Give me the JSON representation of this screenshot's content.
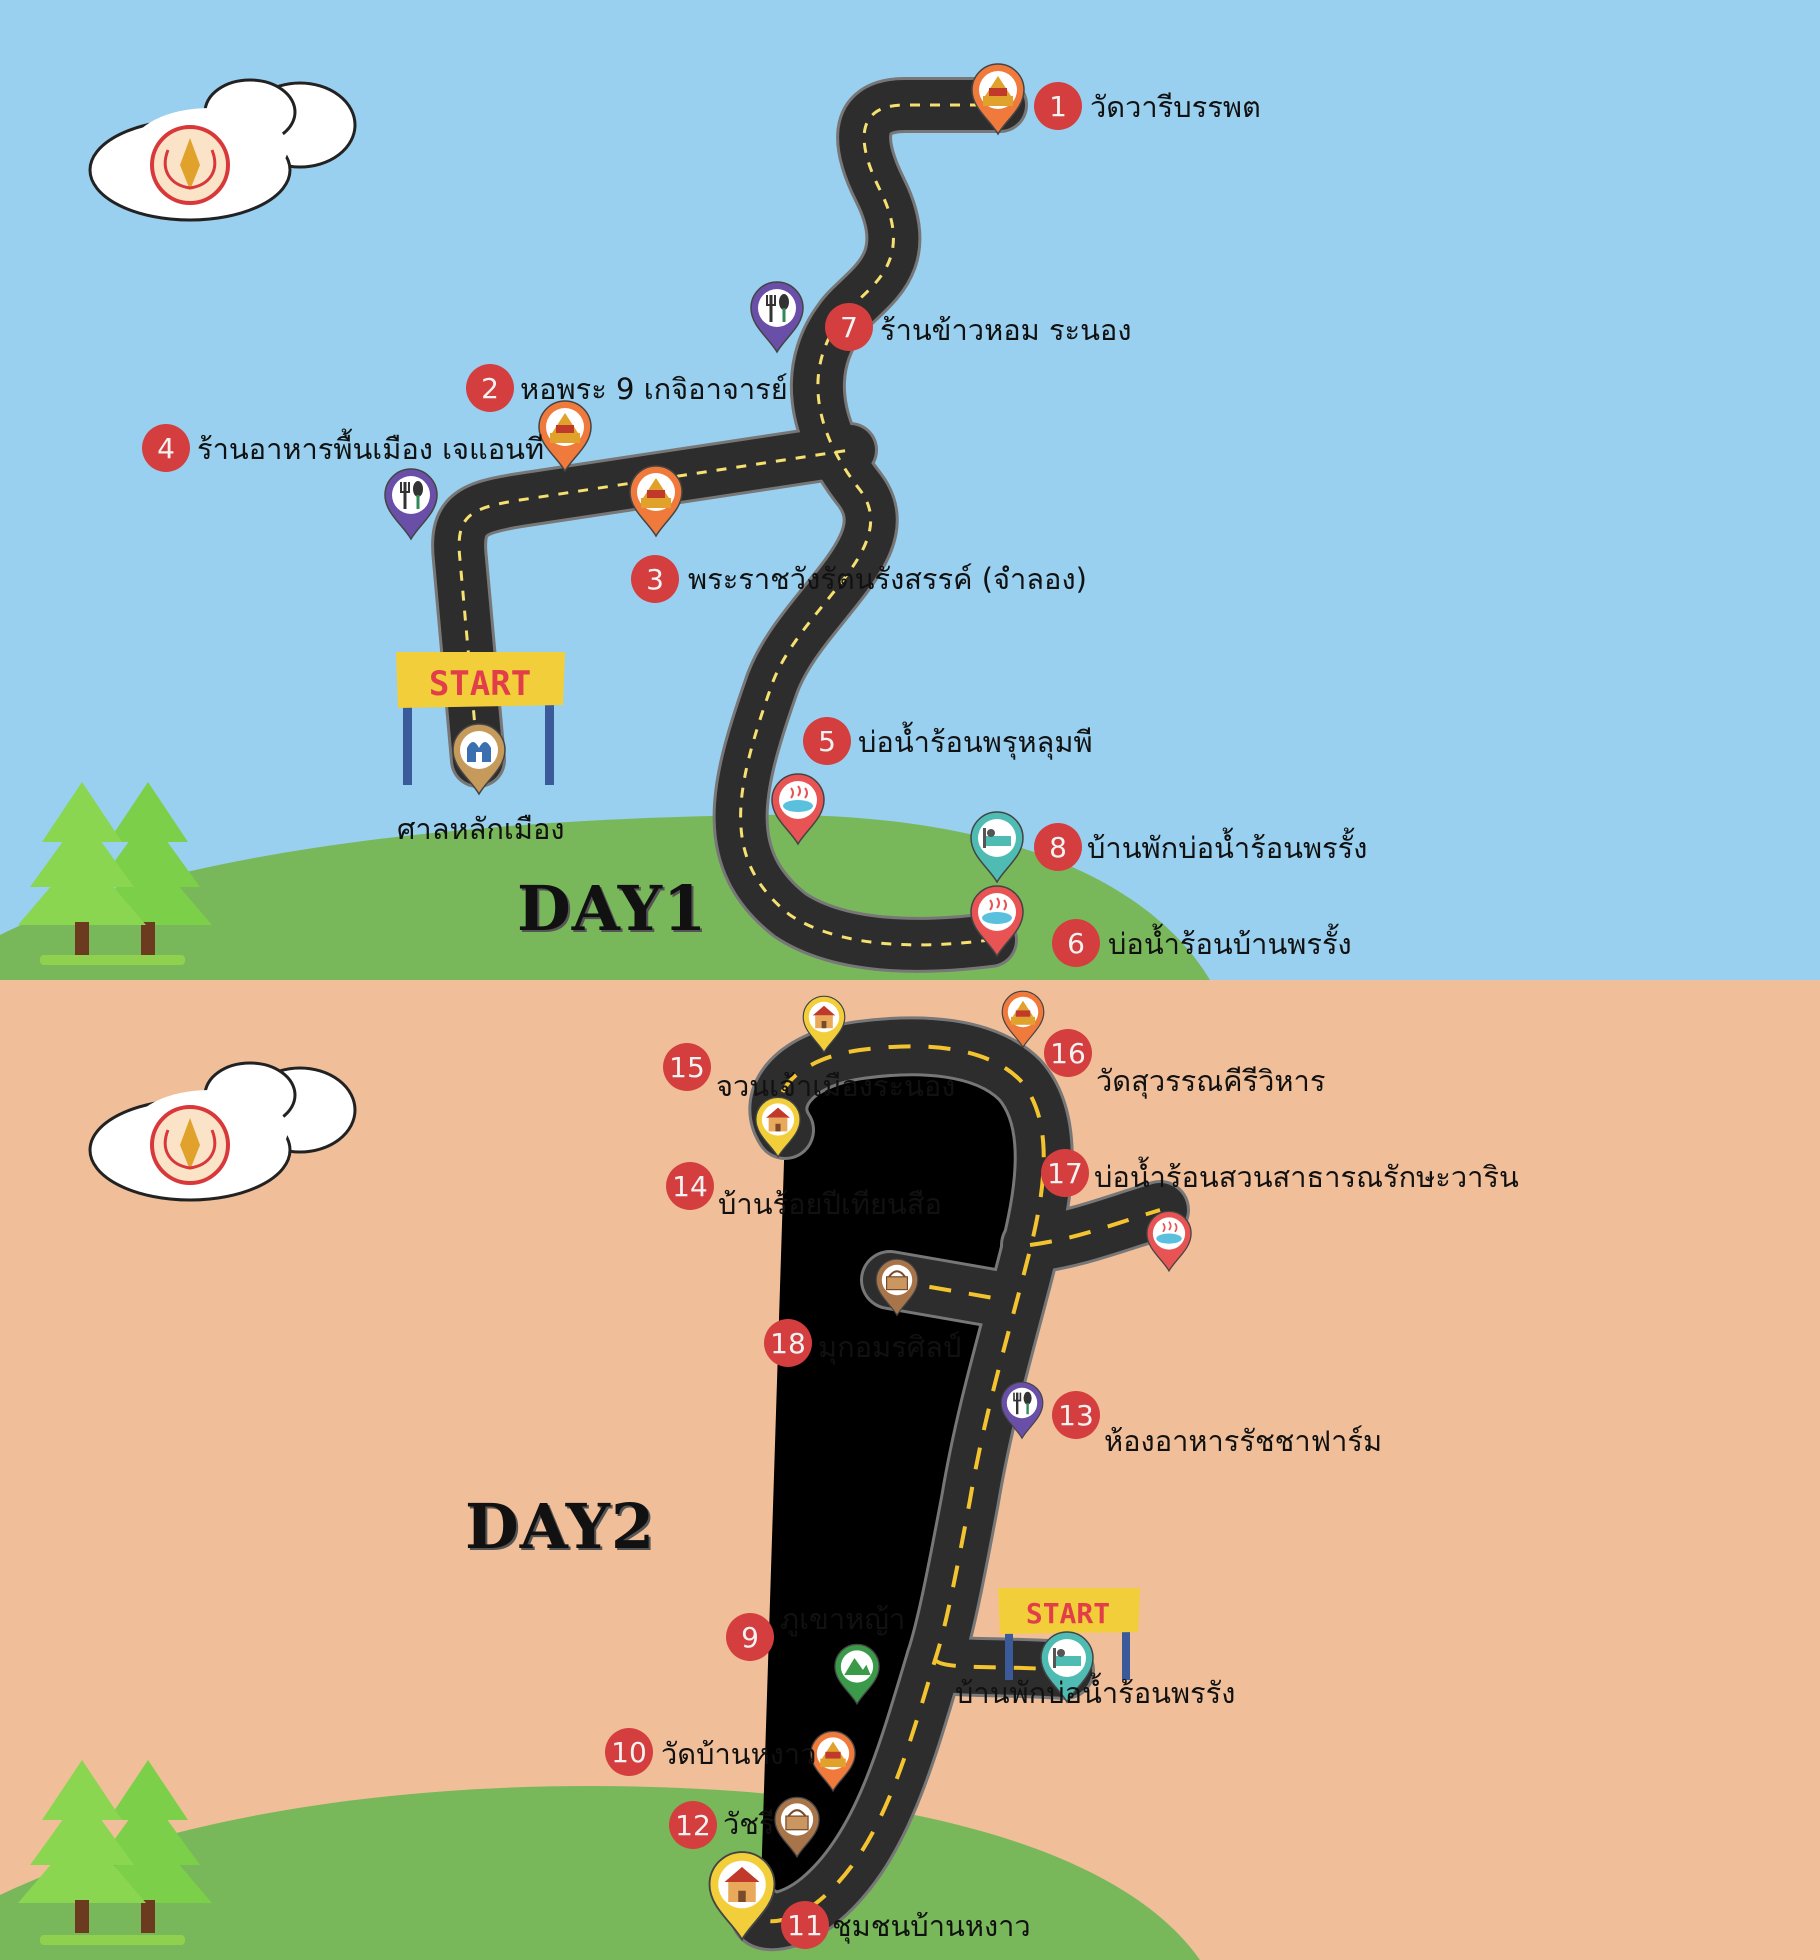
{
  "colors": {
    "sky": "#99cfef",
    "sand": "#f0bf99",
    "hill": "#78b85a",
    "road": "#2d2d2d",
    "dash_day1": "#f5e070",
    "dash_day2": "#f4c430",
    "badge": "#d43e3e",
    "banner": "#f2cf3a",
    "start_text": "#e23e4a"
  },
  "day1": {
    "title": "DAY1",
    "start_label": "START",
    "start_place": "ศาลหลักเมือง",
    "stops": [
      {
        "num": "1",
        "name": "วัดวารีบรรพต",
        "icon": "temple-icon",
        "pin_color": "#f07a3c"
      },
      {
        "num": "2",
        "name": "หอพระ 9 เกจิอาจารย์",
        "icon": "temple-icon",
        "pin_color": "#f07a3c"
      },
      {
        "num": "3",
        "name": "พระราชวังรัตนรังสรรค์ (จำลอง)",
        "icon": "temple-icon",
        "pin_color": "#f07a3c"
      },
      {
        "num": "4",
        "name": "ร้านอาหารพื้นเมือง เจแอนที",
        "icon": "restaurant-icon",
        "pin_color": "#6a4fa8"
      },
      {
        "num": "5",
        "name": "บ่อน้ำร้อนพรุหลุมพี",
        "icon": "hot-spring-icon",
        "pin_color": "#e85454"
      },
      {
        "num": "6",
        "name": "บ่อน้ำร้อนบ้านพรรั้ง",
        "icon": "hot-spring-icon",
        "pin_color": "#e85454"
      },
      {
        "num": "7",
        "name": "ร้านข้าวหอม ระนอง",
        "icon": "restaurant-icon",
        "pin_color": "#6a4fa8"
      },
      {
        "num": "8",
        "name": "บ้านพักบ่อน้ำร้อนพรรั้ง",
        "icon": "lodging-icon",
        "pin_color": "#4fbcb3"
      }
    ]
  },
  "day2": {
    "title": "DAY2",
    "start_label": "START",
    "start_place": "บ้านพักบ่อน้ำร้อนพรรัง",
    "stops": [
      {
        "num": "9",
        "name": "ภูเขาหญ้า",
        "icon": "mountain-icon",
        "pin_color": "#3a9a4a"
      },
      {
        "num": "10",
        "name": "วัดบ้านหงาว",
        "icon": "temple-icon",
        "pin_color": "#f07a3c"
      },
      {
        "num": "11",
        "name": "ชุมชนบ้านหงาว",
        "icon": "house-icon",
        "pin_color": "#f2cf3a"
      },
      {
        "num": "12",
        "name": "วัชรี",
        "icon": "basket-icon",
        "pin_color": "#a8754a"
      },
      {
        "num": "13",
        "name": "ห้องอาหารรัชชาฟาร์ม",
        "icon": "restaurant-icon",
        "pin_color": "#6a4fa8"
      },
      {
        "num": "14",
        "name": "บ้านร้อยปีเทียนสือ",
        "icon": "house-icon",
        "pin_color": "#f2cf3a"
      },
      {
        "num": "15",
        "name": "จวนเจ้าเมืองระนอง",
        "icon": "house-icon",
        "pin_color": "#f2cf3a"
      },
      {
        "num": "16",
        "name": "วัดสุวรรณคีรีวิหาร",
        "icon": "temple-icon",
        "pin_color": "#f07a3c"
      },
      {
        "num": "17",
        "name": "บ่อน้ำร้อนสวนสาธารณรักษะวาริน",
        "icon": "hot-spring-icon",
        "pin_color": "#e85454"
      },
      {
        "num": "18",
        "name": "มุกอมรศิลป์",
        "icon": "basket-icon",
        "pin_color": "#a8754a"
      }
    ]
  }
}
